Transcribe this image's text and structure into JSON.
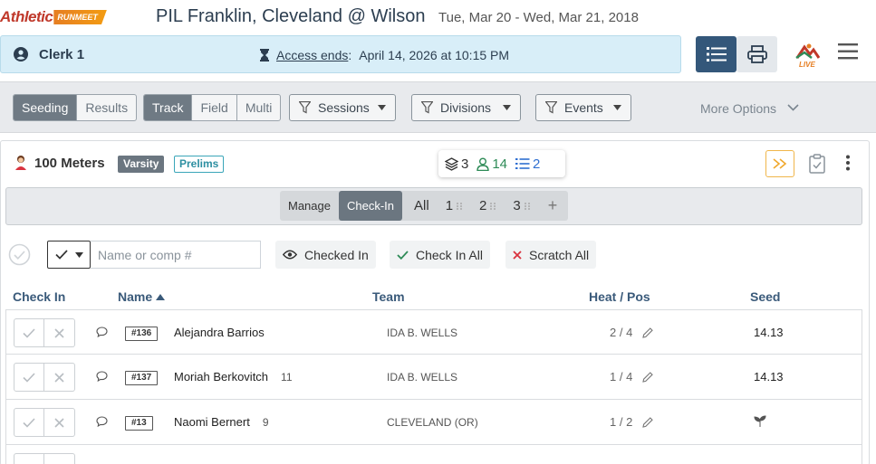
{
  "brand": {
    "logo_main": "Athletic",
    "logo_sub": "RUNMEET"
  },
  "meet": {
    "title": "PIL Franklin, Cleveland @ Wilson",
    "dates": "Tue, Mar 20 - Wed, Mar 21, 2018"
  },
  "clerk": {
    "name": "Clerk 1",
    "access_label": "Access ends",
    "access_sep": ":",
    "access_value": "April 14, 2026 at 10:15 PM"
  },
  "toolbar": {
    "mode_tabs": [
      "Seeding",
      "Results"
    ],
    "active_mode": "Seeding",
    "type_tabs": [
      "Track",
      "Field",
      "Multi"
    ],
    "active_type": "Track",
    "sessions_label": "Sessions",
    "divisions_label": "Divisions",
    "events_label": "Events",
    "more_label": "More Options"
  },
  "event": {
    "name": "100 Meters",
    "level_badge": "Varsity",
    "round_badge": "Prelims",
    "counts": {
      "heats": "3",
      "athletes": "14",
      "list": "2"
    }
  },
  "subtabs": {
    "manage": "Manage",
    "checkin": "Check-In",
    "all": "All",
    "heat1": "1",
    "heat2": "2",
    "heat3": "3",
    "add": "+"
  },
  "filters": {
    "search_placeholder": "Name or comp #",
    "checked_in_label": "Checked In",
    "check_in_all_label": "Check In All",
    "scratch_all_label": "Scratch All"
  },
  "table": {
    "headers": {
      "checkin": "Check In",
      "name": "Name",
      "team": "Team",
      "heat_pos": "Heat / Pos",
      "seed": "Seed"
    },
    "rows": [
      {
        "bib": "#136",
        "name": "Alejandra Barrios",
        "grade": "",
        "team": "IDA B. WELLS",
        "heat_pos": "2 / 4",
        "seed": "14.13"
      },
      {
        "bib": "#137",
        "name": "Moriah Berkovitch",
        "grade": "11",
        "team": "IDA B. WELLS",
        "heat_pos": "1 / 4",
        "seed": "14.13"
      },
      {
        "bib": "#13",
        "name": "Naomi Bernert",
        "grade": "9",
        "team": "CLEVELAND (OR)",
        "heat_pos": "1 / 2",
        "seed": ""
      }
    ]
  },
  "colors": {
    "accent_dark": "#34577a",
    "clerk_bar": "#d8eef8",
    "brand_red": "#c0392b",
    "brand_orange": "#f39c12",
    "green": "#2e8b57",
    "blue": "#2f6fd1",
    "scratch_red": "#d9333f"
  }
}
